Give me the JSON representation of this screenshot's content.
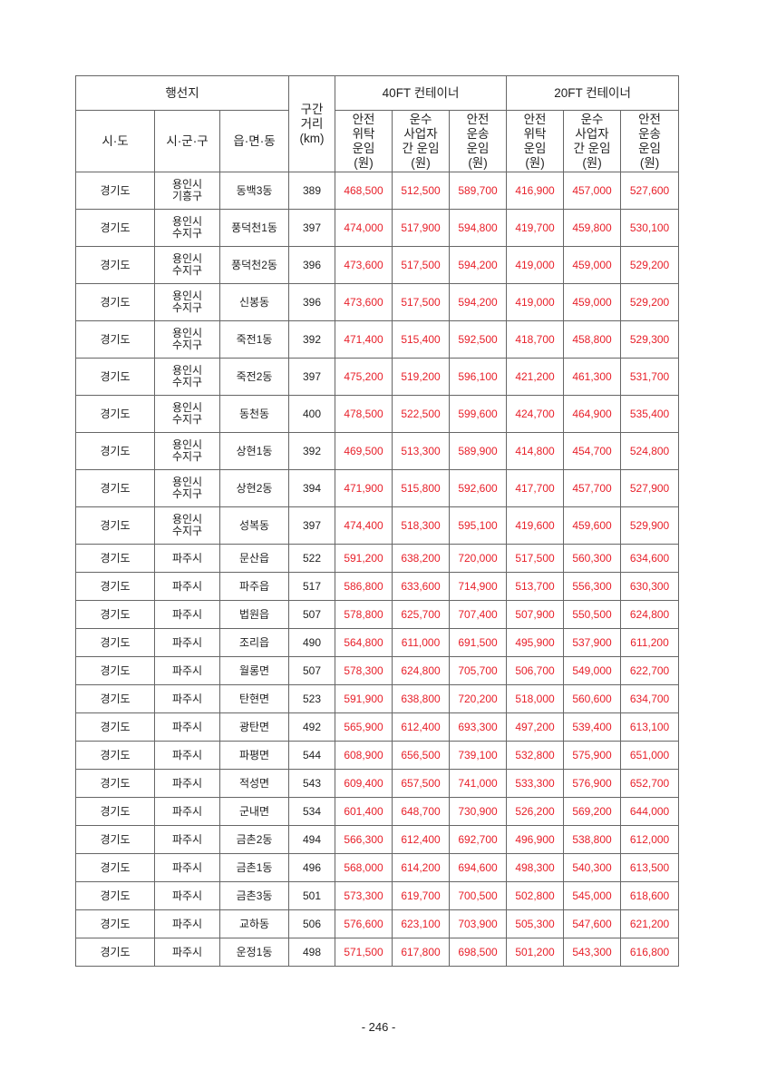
{
  "header": {
    "destination": "행선지",
    "sido": "시·도",
    "sigungu": "시·군·구",
    "eupmyeondong": "읍·면·동",
    "distance": "구간\n거리\n(km)",
    "ft40": "40FT 컨테이너",
    "ft20": "20FT 컨테이너",
    "rate_cols": [
      "안전\n위탁\n운임\n(원)",
      "운수\n사업자\n간 운임\n(원)",
      "안전\n운송\n운임\n(원)",
      "안전\n위탁\n운임\n(원)",
      "운수\n사업자\n간 운임\n(원)",
      "안전\n운송\n운임\n(원)"
    ]
  },
  "rows": [
    [
      "경기도",
      "용인시\n기흥구",
      "동백3동",
      "389",
      "468,500",
      "512,500",
      "589,700",
      "416,900",
      "457,000",
      "527,600"
    ],
    [
      "경기도",
      "용인시\n수지구",
      "풍덕천1동",
      "397",
      "474,000",
      "517,900",
      "594,800",
      "419,700",
      "459,800",
      "530,100"
    ],
    [
      "경기도",
      "용인시\n수지구",
      "풍덕천2동",
      "396",
      "473,600",
      "517,500",
      "594,200",
      "419,000",
      "459,000",
      "529,200"
    ],
    [
      "경기도",
      "용인시\n수지구",
      "신봉동",
      "396",
      "473,600",
      "517,500",
      "594,200",
      "419,000",
      "459,000",
      "529,200"
    ],
    [
      "경기도",
      "용인시\n수지구",
      "죽전1동",
      "392",
      "471,400",
      "515,400",
      "592,500",
      "418,700",
      "458,800",
      "529,300"
    ],
    [
      "경기도",
      "용인시\n수지구",
      "죽전2동",
      "397",
      "475,200",
      "519,200",
      "596,100",
      "421,200",
      "461,300",
      "531,700"
    ],
    [
      "경기도",
      "용인시\n수지구",
      "동천동",
      "400",
      "478,500",
      "522,500",
      "599,600",
      "424,700",
      "464,900",
      "535,400"
    ],
    [
      "경기도",
      "용인시\n수지구",
      "상현1동",
      "392",
      "469,500",
      "513,300",
      "589,900",
      "414,800",
      "454,700",
      "524,800"
    ],
    [
      "경기도",
      "용인시\n수지구",
      "상현2동",
      "394",
      "471,900",
      "515,800",
      "592,600",
      "417,700",
      "457,700",
      "527,900"
    ],
    [
      "경기도",
      "용인시\n수지구",
      "성복동",
      "397",
      "474,400",
      "518,300",
      "595,100",
      "419,600",
      "459,600",
      "529,900"
    ],
    [
      "경기도",
      "파주시",
      "문산읍",
      "522",
      "591,200",
      "638,200",
      "720,000",
      "517,500",
      "560,300",
      "634,600"
    ],
    [
      "경기도",
      "파주시",
      "파주읍",
      "517",
      "586,800",
      "633,600",
      "714,900",
      "513,700",
      "556,300",
      "630,300"
    ],
    [
      "경기도",
      "파주시",
      "법원읍",
      "507",
      "578,800",
      "625,700",
      "707,400",
      "507,900",
      "550,500",
      "624,800"
    ],
    [
      "경기도",
      "파주시",
      "조리읍",
      "490",
      "564,800",
      "611,000",
      "691,500",
      "495,900",
      "537,900",
      "611,200"
    ],
    [
      "경기도",
      "파주시",
      "월롱면",
      "507",
      "578,300",
      "624,800",
      "705,700",
      "506,700",
      "549,000",
      "622,700"
    ],
    [
      "경기도",
      "파주시",
      "탄현면",
      "523",
      "591,900",
      "638,800",
      "720,200",
      "518,000",
      "560,600",
      "634,700"
    ],
    [
      "경기도",
      "파주시",
      "광탄면",
      "492",
      "565,900",
      "612,400",
      "693,300",
      "497,200",
      "539,400",
      "613,100"
    ],
    [
      "경기도",
      "파주시",
      "파평면",
      "544",
      "608,900",
      "656,500",
      "739,100",
      "532,800",
      "575,900",
      "651,000"
    ],
    [
      "경기도",
      "파주시",
      "적성면",
      "543",
      "609,400",
      "657,500",
      "741,000",
      "533,300",
      "576,900",
      "652,700"
    ],
    [
      "경기도",
      "파주시",
      "군내면",
      "534",
      "601,400",
      "648,700",
      "730,900",
      "526,200",
      "569,200",
      "644,000"
    ],
    [
      "경기도",
      "파주시",
      "금촌2동",
      "494",
      "566,300",
      "612,400",
      "692,700",
      "496,900",
      "538,800",
      "612,000"
    ],
    [
      "경기도",
      "파주시",
      "금촌1동",
      "496",
      "568,000",
      "614,200",
      "694,600",
      "498,300",
      "540,300",
      "613,500"
    ],
    [
      "경기도",
      "파주시",
      "금촌3동",
      "501",
      "573,300",
      "619,700",
      "700,500",
      "502,800",
      "545,000",
      "618,600"
    ],
    [
      "경기도",
      "파주시",
      "교하동",
      "506",
      "576,600",
      "623,100",
      "703,900",
      "505,300",
      "547,600",
      "621,200"
    ],
    [
      "경기도",
      "파주시",
      "운정1동",
      "498",
      "571,500",
      "617,800",
      "698,500",
      "501,200",
      "543,300",
      "616,800"
    ]
  ],
  "colors": {
    "rate_text": "#e8202a",
    "text": "#222222",
    "border": "#666666"
  },
  "page_number": "- 246 -"
}
